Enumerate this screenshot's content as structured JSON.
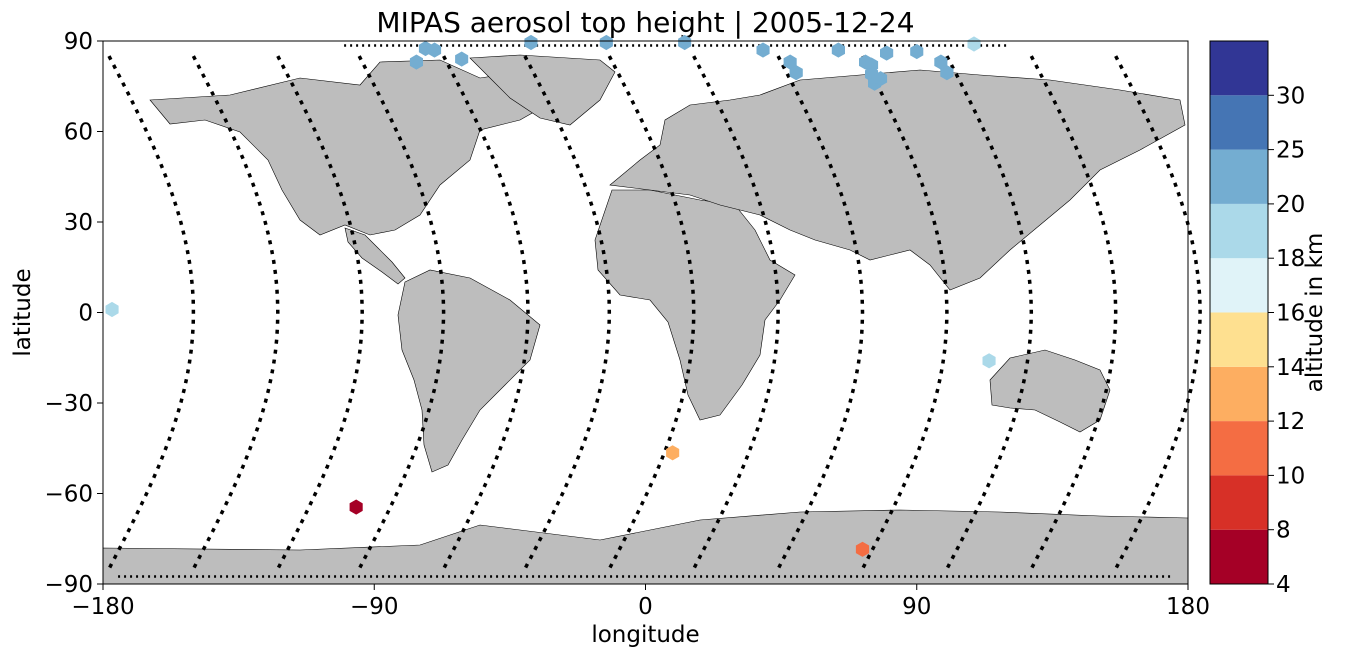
{
  "chart_data": {
    "type": "scatter",
    "title": "MIPAS aerosol top height | 2005-12-24",
    "xlabel": "longitude",
    "ylabel": "latitude",
    "xlim": [
      -180,
      180
    ],
    "ylim": [
      -90,
      90
    ],
    "xticks": [
      -180,
      -90,
      0,
      90,
      180
    ],
    "yticks": [
      -90,
      -60,
      -30,
      0,
      30,
      60,
      90
    ],
    "xtick_labels": [
      "−180",
      "−90",
      "0",
      "90",
      "180"
    ],
    "ytick_labels": [
      "−90",
      "−60",
      "−30",
      "0",
      "30",
      "60",
      "90"
    ],
    "background_map": "world-coastlines-grey",
    "colorbar": {
      "label": "altitude in km",
      "bounds": [
        4,
        8,
        10,
        12,
        14,
        16,
        18,
        20,
        25,
        30
      ],
      "tick_labels": [
        "4",
        "8",
        "10",
        "12",
        "14",
        "16",
        "18",
        "20",
        "25",
        "30"
      ],
      "colors": [
        "#a50026",
        "#d73027",
        "#f46d43",
        "#fdae61",
        "#fee090",
        "#e0f3f8",
        "#abd9e9",
        "#74add1",
        "#4575b4",
        "#313695"
      ]
    },
    "series": [
      {
        "marker": "hexagon",
        "points": [
          {
            "lon": -177,
            "lat": 1,
            "alt": 19
          },
          {
            "lon": -96,
            "lat": -64.5,
            "alt": 6
          },
          {
            "lon": 9,
            "lat": -46.5,
            "alt": 13
          },
          {
            "lon": 72,
            "lat": -78.5,
            "alt": 11
          },
          {
            "lon": 114,
            "lat": -16,
            "alt": 19
          },
          {
            "lon": 109,
            "lat": 89,
            "alt": 19
          },
          {
            "lon": -76,
            "lat": 83,
            "alt": 22
          },
          {
            "lon": -73,
            "lat": 87.5,
            "alt": 22
          },
          {
            "lon": -70,
            "lat": 87,
            "alt": 22
          },
          {
            "lon": -61,
            "lat": 84,
            "alt": 22
          },
          {
            "lon": -38,
            "lat": 89.5,
            "alt": 22
          },
          {
            "lon": -13,
            "lat": 89.5,
            "alt": 22
          },
          {
            "lon": 13,
            "lat": 89.5,
            "alt": 22
          },
          {
            "lon": 39,
            "lat": 87,
            "alt": 22
          },
          {
            "lon": 48,
            "lat": 83,
            "alt": 22
          },
          {
            "lon": 50,
            "lat": 79.5,
            "alt": 22
          },
          {
            "lon": 64,
            "lat": 87,
            "alt": 22
          },
          {
            "lon": 73,
            "lat": 83,
            "alt": 22
          },
          {
            "lon": 75,
            "lat": 82,
            "alt": 22
          },
          {
            "lon": 75,
            "lat": 79,
            "alt": 22
          },
          {
            "lon": 76,
            "lat": 76,
            "alt": 22
          },
          {
            "lon": 78,
            "lat": 77.5,
            "alt": 22
          },
          {
            "lon": 80,
            "lat": 86,
            "alt": 22
          },
          {
            "lon": 90,
            "lat": 86.5,
            "alt": 22
          },
          {
            "lon": 98,
            "lat": 83,
            "alt": 22
          },
          {
            "lon": 100,
            "lat": 79.5,
            "alt": 22
          }
        ]
      }
    ]
  }
}
